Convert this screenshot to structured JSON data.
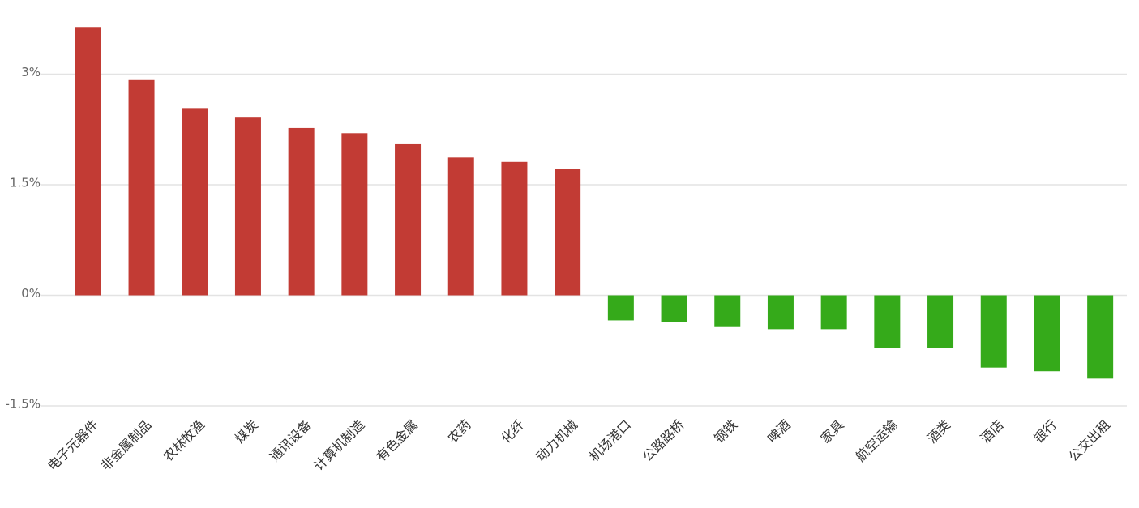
{
  "chart_data": {
    "type": "bar",
    "categories": [
      "电子元器件",
      "非金属制品",
      "农林牧渔",
      "煤炭",
      "通讯设备",
      "计算机制造",
      "有色金属",
      "农药",
      "化纤",
      "动力机械",
      "机场港口",
      "公路路桥",
      "钢铁",
      "啤酒",
      "家具",
      "航空运输",
      "酒类",
      "酒店",
      "银行",
      "公交出租"
    ],
    "values": [
      3.64,
      2.92,
      2.54,
      2.41,
      2.27,
      2.2,
      2.05,
      1.87,
      1.81,
      1.71,
      -0.34,
      -0.36,
      -0.42,
      -0.46,
      -0.46,
      -0.71,
      -0.71,
      -0.98,
      -1.03,
      -1.13
    ],
    "positive_color": "#c23b34",
    "negative_color": "#35aa1a",
    "ylim": [
      -1.5,
      4
    ],
    "yticks": [
      {
        "value": -1.5,
        "label": "-1.5%"
      },
      {
        "value": 0,
        "label": "0%"
      },
      {
        "value": 1.5,
        "label": "1.5%"
      },
      {
        "value": 3,
        "label": "3%"
      }
    ],
    "grid": true
  }
}
